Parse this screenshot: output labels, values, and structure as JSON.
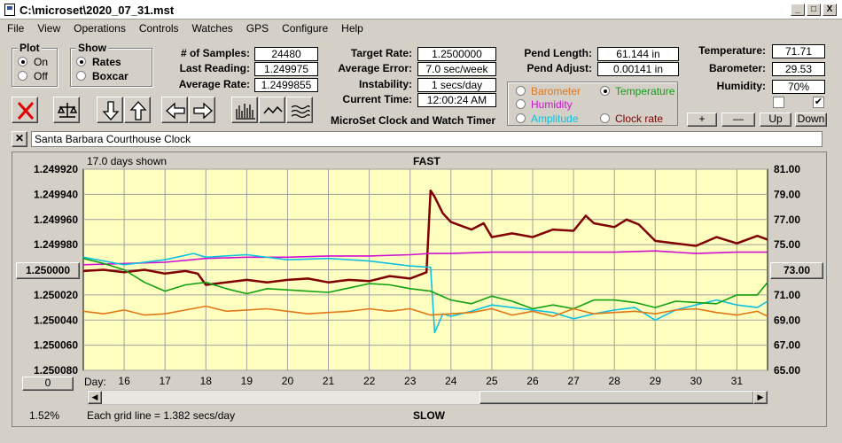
{
  "window": {
    "title": "C:\\microset\\2020_07_31.mst",
    "buttons": [
      "_",
      "□",
      "X"
    ]
  },
  "menu": [
    "File",
    "View",
    "Operations",
    "Controls",
    "Watches",
    "GPS",
    "Configure",
    "Help"
  ],
  "plot_group": {
    "title": "Plot",
    "options": [
      "On",
      "Off"
    ],
    "selected": "On"
  },
  "show_group": {
    "title": "Show",
    "options": [
      "Rates",
      "Boxcar"
    ],
    "selected": "Rates"
  },
  "stats": {
    "samples_label": "# of Samples:",
    "samples": "24480",
    "last_label": "Last Reading:",
    "last": "1.249975",
    "avg_label": "Average Rate:",
    "avg": "1.2499855"
  },
  "rates": {
    "target_label": "Target Rate:",
    "target": "1.2500000",
    "error_label": "Average Error:",
    "error": "7.0 sec/week",
    "instab_label": "Instability:",
    "instab": "1 secs/day",
    "time_label": "Current Time:",
    "time": "12:00:24 AM"
  },
  "app_caption": "MicroSet Clock and Watch Timer",
  "pendulum": {
    "length_label": "Pend Length:",
    "length": "61.144 in",
    "adjust_label": "Pend Adjust:",
    "adjust": "0.00141 in"
  },
  "sensor_options": [
    {
      "label": "Barometer",
      "color": "#e07818",
      "selected": false
    },
    {
      "label": "Temperature",
      "color": "#10a010",
      "selected": true
    },
    {
      "label": "Humidity",
      "color": "#d010d0",
      "selected": false
    },
    {
      "label": "Amplitude",
      "color": "#10c0e0",
      "selected": false
    },
    {
      "label": "Clock rate",
      "color": "#800000",
      "selected": false
    }
  ],
  "environment": {
    "temp_label": "Temperature:",
    "temp": "71.71",
    "baro_label": "Barometer:",
    "baro": "29.53",
    "hum_label": "Humidity:",
    "hum": "70%",
    "check1": false,
    "check2": true
  },
  "right_buttons": [
    "+",
    "—",
    "Up",
    "Down"
  ],
  "clock_name": "Santa Barbara Courthouse Clock",
  "chart_labels": {
    "days_shown": "17.0 days shown",
    "fast": "FAST",
    "slow": "SLOW",
    "gridline_note": "Each grid line = 1.382 secs/day",
    "day_label": "Day:",
    "left_mid_button": "1.250000",
    "right_mid_button": "73.00",
    "zero_button": "0",
    "percent": "1.52%"
  },
  "chart_data": {
    "type": "line",
    "x_ticks": [
      16,
      17,
      18,
      19,
      20,
      21,
      22,
      23,
      24,
      25,
      26,
      27,
      28,
      29,
      30,
      31
    ],
    "xlim": [
      15.0,
      31.75
    ],
    "y_left_ticks": [
      "1.249920",
      "1.249940",
      "1.249960",
      "1.249980",
      "1.250000",
      "1.250020",
      "1.250040",
      "1.250060",
      "1.250080"
    ],
    "y_left_range": [
      1.24992,
      1.25008
    ],
    "y_right_ticks": [
      "81.00",
      "79.00",
      "77.00",
      "75.00",
      "73.00",
      "71.00",
      "69.00",
      "67.00",
      "65.00"
    ],
    "y_right_range": [
      81.0,
      65.0
    ],
    "grid": true,
    "series": [
      {
        "color": "#800000",
        "axis": "left",
        "x": [
          15.0,
          15.5,
          16.0,
          16.5,
          17.0,
          17.5,
          17.8,
          18.0,
          18.5,
          19.0,
          19.5,
          20.0,
          20.5,
          21.0,
          21.5,
          22.0,
          22.5,
          23.0,
          23.4,
          23.5,
          23.6,
          23.8,
          24.0,
          24.5,
          24.8,
          25.0,
          25.5,
          26.0,
          26.5,
          27.0,
          27.3,
          27.5,
          28.0,
          28.3,
          28.6,
          29.0,
          29.5,
          30.0,
          30.5,
          31.0,
          31.5,
          31.75
        ],
        "y": [
          1.250001,
          1.25,
          1.250002,
          1.25,
          1.250003,
          1.250001,
          1.250003,
          1.250012,
          1.25001,
          1.250008,
          1.25001,
          1.250008,
          1.250007,
          1.25001,
          1.250008,
          1.250009,
          1.250005,
          1.250007,
          1.250002,
          1.249937,
          1.249942,
          1.249955,
          1.249962,
          1.249968,
          1.249963,
          1.249974,
          1.249971,
          1.249974,
          1.249968,
          1.249969,
          1.249957,
          1.249963,
          1.249966,
          1.24996,
          1.249964,
          1.249977,
          1.249979,
          1.249981,
          1.249974,
          1.249979,
          1.249973,
          1.249976
        ]
      },
      {
        "color": "#d010d0",
        "axis": "right",
        "x": [
          15.0,
          16.0,
          17.0,
          18.0,
          19.0,
          20.0,
          21.0,
          22.0,
          23.0,
          23.5,
          24.0,
          25.0,
          26.0,
          27.0,
          28.0,
          29.0,
          30.0,
          31.0,
          31.75
        ],
        "y": [
          73.4,
          73.5,
          73.6,
          73.9,
          74.0,
          74.0,
          74.1,
          74.1,
          74.2,
          74.3,
          74.3,
          74.4,
          74.4,
          74.4,
          74.4,
          74.5,
          74.3,
          74.4,
          74.4
        ]
      },
      {
        "color": "#10c0e0",
        "axis": "right",
        "x": [
          15.0,
          16.0,
          17.0,
          17.7,
          18.0,
          19.0,
          20.0,
          21.0,
          22.0,
          23.0,
          23.5,
          23.6,
          23.8,
          24.0,
          24.5,
          25.0,
          25.5,
          26.0,
          26.5,
          27.0,
          27.5,
          28.0,
          28.5,
          29.0,
          29.5,
          30.0,
          30.5,
          31.0,
          31.5,
          31.75
        ],
        "y": [
          74.0,
          73.4,
          73.8,
          74.3,
          74.0,
          74.2,
          73.8,
          73.9,
          73.7,
          73.3,
          73.2,
          68.0,
          69.5,
          69.3,
          69.7,
          70.2,
          70.0,
          69.8,
          69.6,
          69.1,
          69.5,
          69.8,
          70.0,
          69.0,
          69.8,
          70.2,
          70.6,
          70.2,
          70.0,
          70.5
        ]
      },
      {
        "color": "#10a010",
        "axis": "right",
        "x": [
          15.0,
          15.5,
          16.0,
          16.5,
          17.0,
          17.5,
          18.0,
          18.5,
          19.0,
          19.5,
          20.0,
          21.0,
          22.0,
          22.5,
          23.0,
          23.5,
          24.0,
          24.5,
          25.0,
          25.5,
          26.0,
          26.5,
          27.0,
          27.5,
          28.0,
          28.5,
          29.0,
          29.5,
          30.0,
          30.5,
          31.0,
          31.5,
          31.75
        ],
        "y": [
          73.9,
          73.5,
          73.0,
          72.0,
          71.3,
          71.8,
          72.0,
          71.5,
          71.1,
          71.5,
          71.4,
          71.2,
          71.9,
          71.8,
          71.5,
          71.3,
          70.6,
          70.3,
          70.9,
          70.5,
          69.9,
          70.2,
          69.9,
          70.6,
          70.6,
          70.4,
          70.0,
          70.5,
          70.4,
          70.3,
          71.0,
          71.0,
          72.0
        ]
      },
      {
        "color": "#e07818",
        "axis": "right",
        "x": [
          15.0,
          15.5,
          16.0,
          16.5,
          17.0,
          17.5,
          18.0,
          18.5,
          19.0,
          19.5,
          20.0,
          20.5,
          21.0,
          21.5,
          22.0,
          22.5,
          23.0,
          23.5,
          24.0,
          24.5,
          25.0,
          25.5,
          26.0,
          26.5,
          27.0,
          27.5,
          28.0,
          28.5,
          29.0,
          29.5,
          30.0,
          30.5,
          31.0,
          31.5,
          31.75
        ],
        "y": [
          69.7,
          69.5,
          69.8,
          69.4,
          69.5,
          69.8,
          70.1,
          69.7,
          69.8,
          69.9,
          69.7,
          69.5,
          69.6,
          69.7,
          69.9,
          69.7,
          69.9,
          69.4,
          69.5,
          69.6,
          69.9,
          69.4,
          69.7,
          69.3,
          69.9,
          69.5,
          69.6,
          69.7,
          69.5,
          69.8,
          69.9,
          69.6,
          69.4,
          69.7,
          69.3
        ]
      }
    ]
  }
}
